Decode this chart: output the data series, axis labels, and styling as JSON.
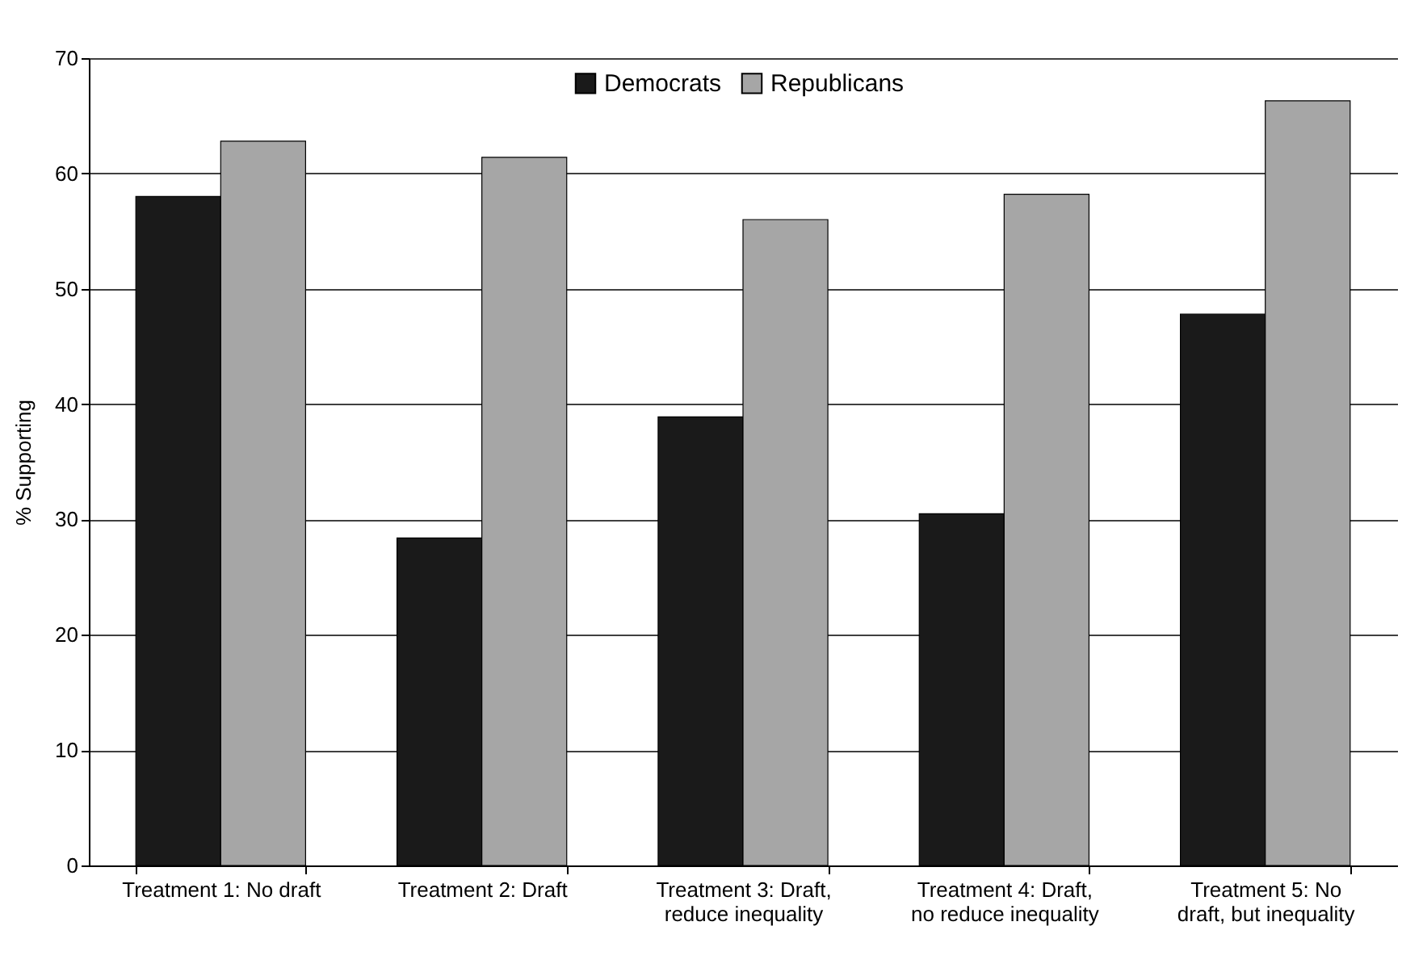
{
  "chart_data": {
    "type": "bar",
    "ylabel": "% Supporting",
    "categories": [
      "Treatment 1: No draft",
      "Treatment 2: Draft",
      "Treatment 3: Draft, reduce inequality",
      "Treatment 4: Draft, no reduce inequality",
      "Treatment 5: No draft, but inequality"
    ],
    "series": [
      {
        "name": "Democrats",
        "color": "#1a1a1a",
        "values": [
          58,
          28.4,
          38.9,
          30.5,
          47.8
        ]
      },
      {
        "name": "Republicans",
        "color": "#a6a6a6",
        "values": [
          62.8,
          61.4,
          56,
          58.2,
          66.3
        ]
      }
    ],
    "ylim": [
      0,
      70
    ],
    "yticks": [
      0,
      10,
      20,
      30,
      40,
      50,
      60,
      70
    ],
    "grid": "y",
    "legend": "top"
  }
}
